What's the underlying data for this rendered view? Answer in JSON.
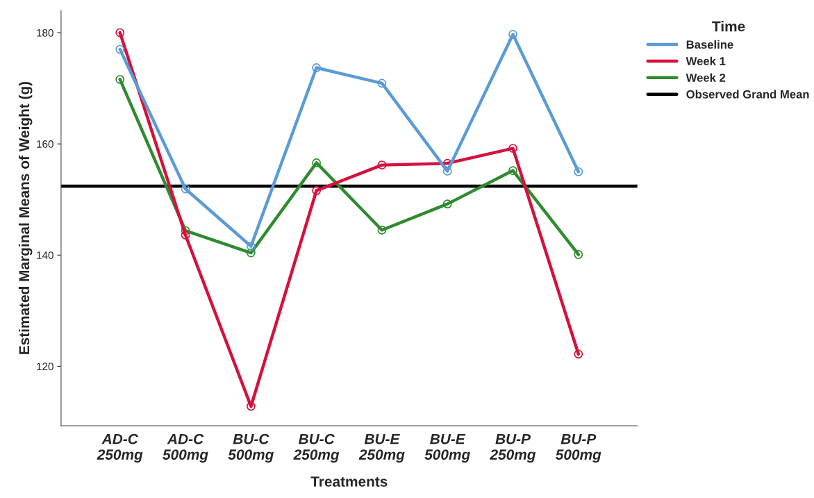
{
  "chart_data": {
    "type": "line",
    "xlabel": "Treatments",
    "ylabel": "Estimated Marginal Means of Weight (g)",
    "legend_title": "Time",
    "categories": [
      "AD-C\n250mg",
      "AD-C\n500mg",
      "BU-C\n500mg",
      "BU-C\n250mg",
      "BU-E\n250mg",
      "BU-E\n500mg",
      "BU-P\n250mg",
      "BU-P\n500mg"
    ],
    "series": [
      {
        "name": "Baseline",
        "color": "#5b9bd5",
        "values": [
          177,
          151.9,
          141.6,
          173.7,
          170.9,
          155.1,
          179.7,
          155
        ]
      },
      {
        "name": "Week 1",
        "color": "#d6103c",
        "values": [
          180,
          143.6,
          112.8,
          151.6,
          156.2,
          156.5,
          159.2,
          122.2
        ]
      },
      {
        "name": "Week 2",
        "color": "#2e8b2e",
        "values": [
          171.6,
          144.4,
          140.4,
          156.6,
          144.5,
          149.2,
          155.2,
          140.1
        ]
      }
    ],
    "ref_lines": [
      {
        "axis": "y",
        "value": 152.4,
        "label": "Observed Grand Mean",
        "color": "#000000"
      }
    ],
    "ylim": [
      109.3,
      184
    ],
    "yticks": [
      120,
      140,
      160,
      180
    ],
    "marker": "circle",
    "line_style": "solid",
    "grid": false,
    "legend": "right"
  }
}
